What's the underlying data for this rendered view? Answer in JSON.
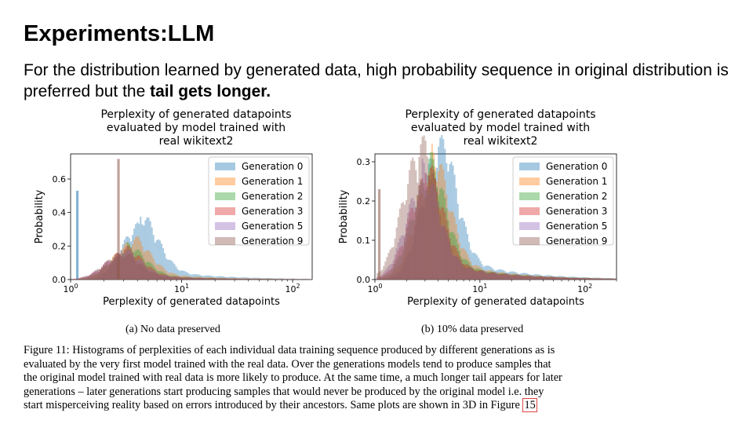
{
  "slide": {
    "title": "Experiments:LLM",
    "subtitle_before": "For the distribution learned by generated data, high probability sequence in original distribution is preferred but the ",
    "subtitle_bold": "tail gets longer."
  },
  "figure": {
    "caption_lines": [
      "Figure 11: Histograms of perplexities of each individual data training sequence produced by different generations as is",
      "evaluated by the very first model trained with the real data. Over the generations models tend to produce samples that",
      "the original model trained with real data is more likely to produce. At the same time, a much longer tail appears for later",
      "generations – later generations start producing samples that would never be produced by the original model i.e. they",
      "start misperceiving reality based on errors introduced by their ancestors. Same plots are shown in 3D in Figure "
    ],
    "figure_ref": "15",
    "subcaption_a": "(a) No data preserved",
    "subcaption_b": "(b) 10% data preserved"
  },
  "chart_data": [
    {
      "type": "histogram",
      "title_lines": [
        "Perplexity of generated datapoints",
        "evaluated by model trained with",
        "real wikitext2"
      ],
      "xlabel": "Perplexity of generated datapoints",
      "ylabel": "Probability",
      "xscale": "log",
      "xlim": [
        1,
        150
      ],
      "ylim": [
        0,
        0.75
      ],
      "yticks": [
        "0.0",
        "0.2",
        "0.4",
        "0.6"
      ],
      "ytick_values": [
        0,
        0.2,
        0.4,
        0.6
      ],
      "xticks": [
        "10^0",
        "10^1",
        "10^2"
      ],
      "xtick_values": [
        1,
        10,
        100
      ],
      "legend_position": "upper right",
      "series": [
        {
          "name": "Generation 0",
          "color": "#1f77b4",
          "peak_x": 4.2,
          "peak_y": 0.3,
          "spike_x": 1.15,
          "spike_y": 0.53
        },
        {
          "name": "Generation 1",
          "color": "#ff7f0e",
          "peak_x": 3.5,
          "peak_y": 0.2
        },
        {
          "name": "Generation 2",
          "color": "#2ca02c",
          "peak_x": 3.2,
          "peak_y": 0.16
        },
        {
          "name": "Generation 3",
          "color": "#d62728",
          "peak_x": 3.0,
          "peak_y": 0.15
        },
        {
          "name": "Generation 5",
          "color": "#9467bd",
          "peak_x": 2.9,
          "peak_y": 0.14
        },
        {
          "name": "Generation 9",
          "color": "#8c564b",
          "peak_x": 2.8,
          "peak_y": 0.13,
          "spike_x": 2.7,
          "spike_y": 0.72
        }
      ]
    },
    {
      "type": "histogram",
      "title_lines": [
        "Perplexity of generated datapoints",
        "evaluated by model trained with",
        "real wikitext2"
      ],
      "xlabel": "Perplexity of generated datapoints",
      "ylabel": "Probability",
      "xscale": "log",
      "xlim": [
        1,
        200
      ],
      "ylim": [
        0,
        0.32
      ],
      "yticks": [
        "0.0",
        "0.1",
        "0.2",
        "0.3"
      ],
      "ytick_values": [
        0,
        0.1,
        0.2,
        0.3
      ],
      "xticks": [
        "10^0",
        "10^1",
        "10^2"
      ],
      "xtick_values": [
        1,
        10,
        100
      ],
      "legend_position": "upper right",
      "series": [
        {
          "name": "Generation 0",
          "color": "#1f77b4",
          "peak_x": 4.0,
          "peak_y": 0.3
        },
        {
          "name": "Generation 1",
          "color": "#ff7f0e",
          "peak_x": 3.5,
          "peak_y": 0.25
        },
        {
          "name": "Generation 2",
          "color": "#2ca02c",
          "peak_x": 3.2,
          "peak_y": 0.24
        },
        {
          "name": "Generation 3",
          "color": "#d62728",
          "peak_x": 3.0,
          "peak_y": 0.23
        },
        {
          "name": "Generation 5",
          "color": "#9467bd",
          "peak_x": 2.8,
          "peak_y": 0.22
        },
        {
          "name": "Generation 9",
          "color": "#8c564b",
          "peak_x": 2.6,
          "peak_y": 0.29,
          "spike_x": 1.1,
          "spike_y": 0.23
        }
      ]
    }
  ]
}
